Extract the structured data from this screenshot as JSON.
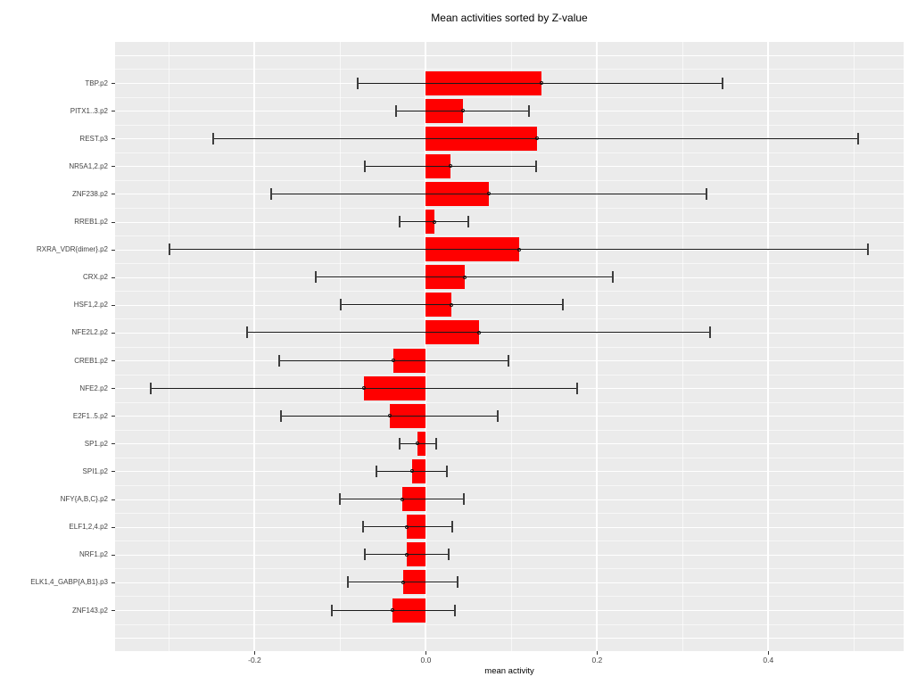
{
  "title": "Mean activities sorted by Z-value",
  "axes": {
    "x_label": "mean activity",
    "x_ticks": [
      {
        "value": -0.2,
        "label": "-0.2"
      },
      {
        "value": 0.0,
        "label": "0.0"
      },
      {
        "value": 0.2,
        "label": "0.2"
      },
      {
        "value": 0.4,
        "label": "0.4"
      }
    ],
    "x_minor": [
      -0.3,
      -0.1,
      0.1,
      0.3,
      0.5
    ],
    "x_range": [
      -0.363,
      0.558
    ]
  },
  "colors": {
    "panel_background": "#ebebeb",
    "gridline": "#ffffff",
    "bar": "#ff0000",
    "error_bar": "#1a1a1a",
    "axis_text": "#444444"
  },
  "chart_data": {
    "type": "bar",
    "orientation": "horizontal",
    "title": "Mean activities sorted by Z-value",
    "xlabel": "mean activity",
    "ylabel": "",
    "xlim": [
      -0.363,
      0.558
    ],
    "grid": true,
    "categories": [
      "TBP.p2",
      "PITX1..3.p2",
      "REST.p3",
      "NR5A1,2.p2",
      "ZNF238.p2",
      "RREB1.p2",
      "RXRA_VDR{dimer}.p2",
      "CRX.p2",
      "HSF1,2.p2",
      "NFE2L2.p2",
      "CREB1.p2",
      "NFE2.p2",
      "E2F1..5.p2",
      "SP1.p2",
      "SPI1.p2",
      "NFY{A,B,C}.p2",
      "ELF1,2,4.p2",
      "NRF1.p2",
      "ELK1,4_GABP{A,B1}.p3",
      "ZNF143.p2"
    ],
    "values": [
      0.135,
      0.043,
      0.13,
      0.029,
      0.074,
      0.01,
      0.109,
      0.045,
      0.03,
      0.062,
      -0.038,
      -0.072,
      -0.042,
      -0.01,
      -0.016,
      -0.028,
      -0.022,
      -0.022,
      -0.027,
      -0.039
    ],
    "error_low": [
      -0.08,
      -0.035,
      -0.248,
      -0.071,
      -0.181,
      -0.031,
      -0.299,
      -0.129,
      -0.099,
      -0.209,
      -0.171,
      -0.321,
      -0.169,
      -0.031,
      -0.058,
      -0.1,
      -0.073,
      -0.071,
      -0.091,
      -0.11
    ],
    "error_high": [
      0.347,
      0.12,
      0.505,
      0.129,
      0.328,
      0.05,
      0.516,
      0.218,
      0.16,
      0.332,
      0.096,
      0.177,
      0.084,
      0.012,
      0.025,
      0.044,
      0.031,
      0.027,
      0.037,
      0.034
    ]
  }
}
